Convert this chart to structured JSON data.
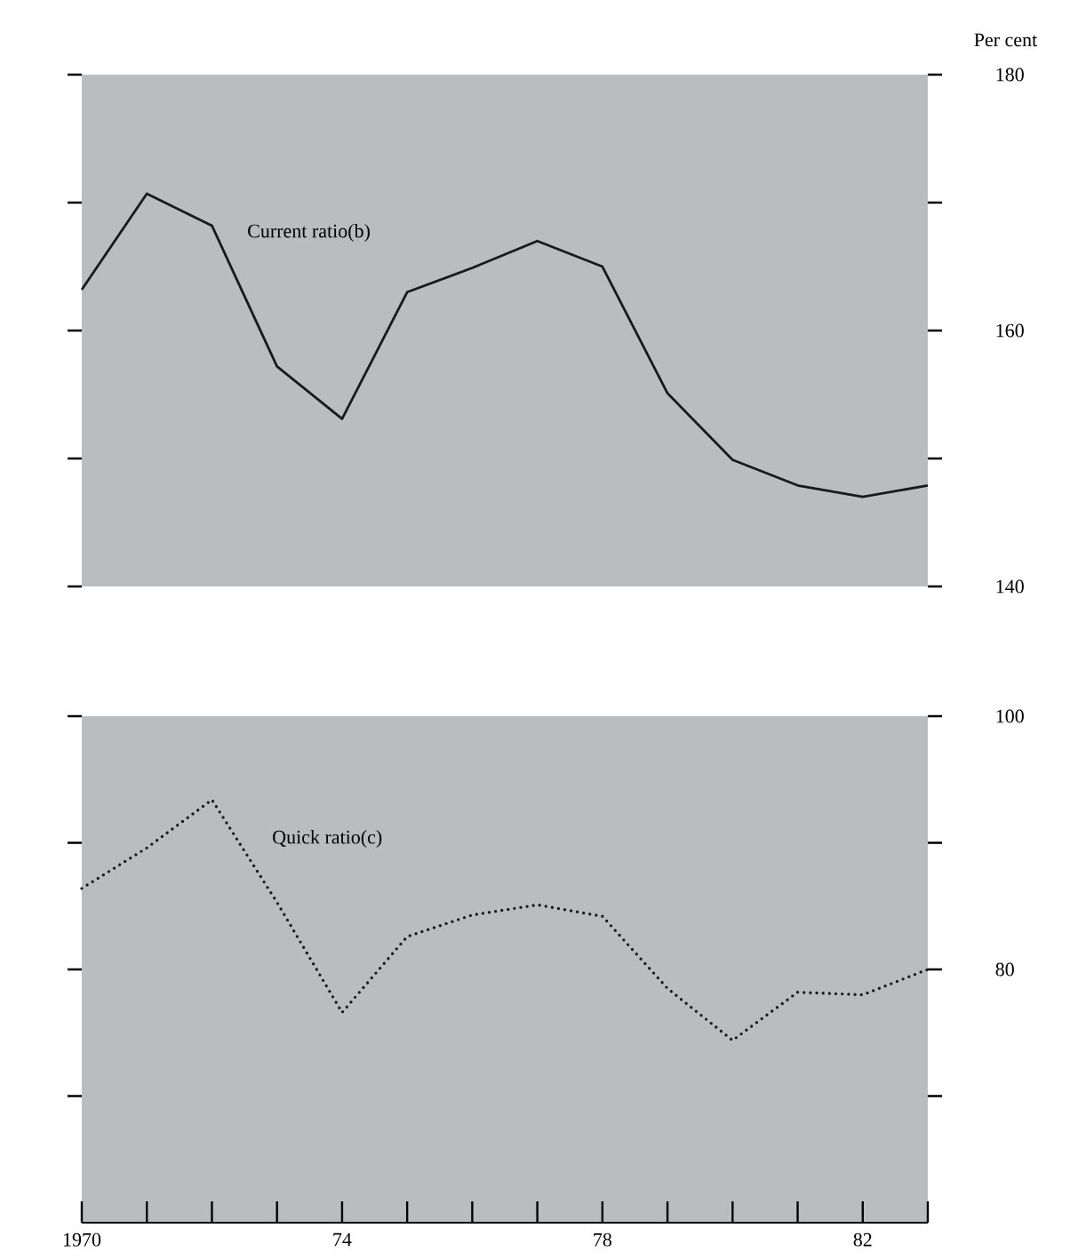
{
  "chart_data": [
    {
      "type": "line",
      "ylabel": "Per cent",
      "x": [
        1970,
        1971,
        1972,
        1973,
        1974,
        1975,
        1976,
        1977,
        1978,
        1979,
        1980,
        1981,
        1982,
        1983
      ],
      "xlim": [
        1970,
        1983
      ],
      "ylim": [
        140,
        180
      ],
      "yticks": [
        180,
        {
          "value": 170,
          "label": null
        },
        160,
        {
          "value": 150,
          "label": null
        },
        140
      ],
      "tick_labels": "y",
      "legend": false,
      "series": [
        {
          "name": "Current ratio(b)",
          "color": "#1a1a1a",
          "line_style": "solid",
          "values": [
            163.2,
            170.7,
            168.2,
            157.2,
            153.1,
            163.0,
            164.9,
            167.0,
            165.0,
            155.1,
            149.9,
            147.9,
            147.0,
            147.9
          ]
        }
      ]
    },
    {
      "type": "line",
      "x": [
        1970,
        1971,
        1972,
        1973,
        1974,
        1975,
        1976,
        1977,
        1978,
        1979,
        1980,
        1981,
        1982,
        1983
      ],
      "xlim": [
        1970,
        1983
      ],
      "ylim": [
        60,
        100
      ],
      "xticks": [
        1970,
        {
          "value": 1971,
          "label": null
        },
        {
          "value": 1972,
          "label": null
        },
        {
          "value": 1973,
          "label": null
        },
        {
          "value": 1974,
          "label": "74"
        },
        {
          "value": 1975,
          "label": null
        },
        {
          "value": 1976,
          "label": null
        },
        {
          "value": 1977,
          "label": null
        },
        {
          "value": 1978,
          "label": "78"
        },
        {
          "value": 1979,
          "label": null
        },
        {
          "value": 1980,
          "label": null
        },
        {
          "value": 1981,
          "label": null
        },
        {
          "value": 1982,
          "label": "82"
        },
        {
          "value": 1983,
          "label": null
        }
      ],
      "yticks": [
        100,
        {
          "value": 90,
          "label": null
        },
        80,
        {
          "value": 70,
          "label": null
        }
      ],
      "legend": false,
      "series": [
        {
          "name": "Quick ratio(c)",
          "color": "#1a1a1a",
          "line_style": "dotted",
          "values": [
            86.4,
            89.6,
            93.4,
            85.3,
            76.6,
            82.6,
            84.3,
            85.1,
            84.2,
            78.5,
            74.4,
            78.2,
            78.0,
            80.0
          ]
        }
      ]
    }
  ]
}
